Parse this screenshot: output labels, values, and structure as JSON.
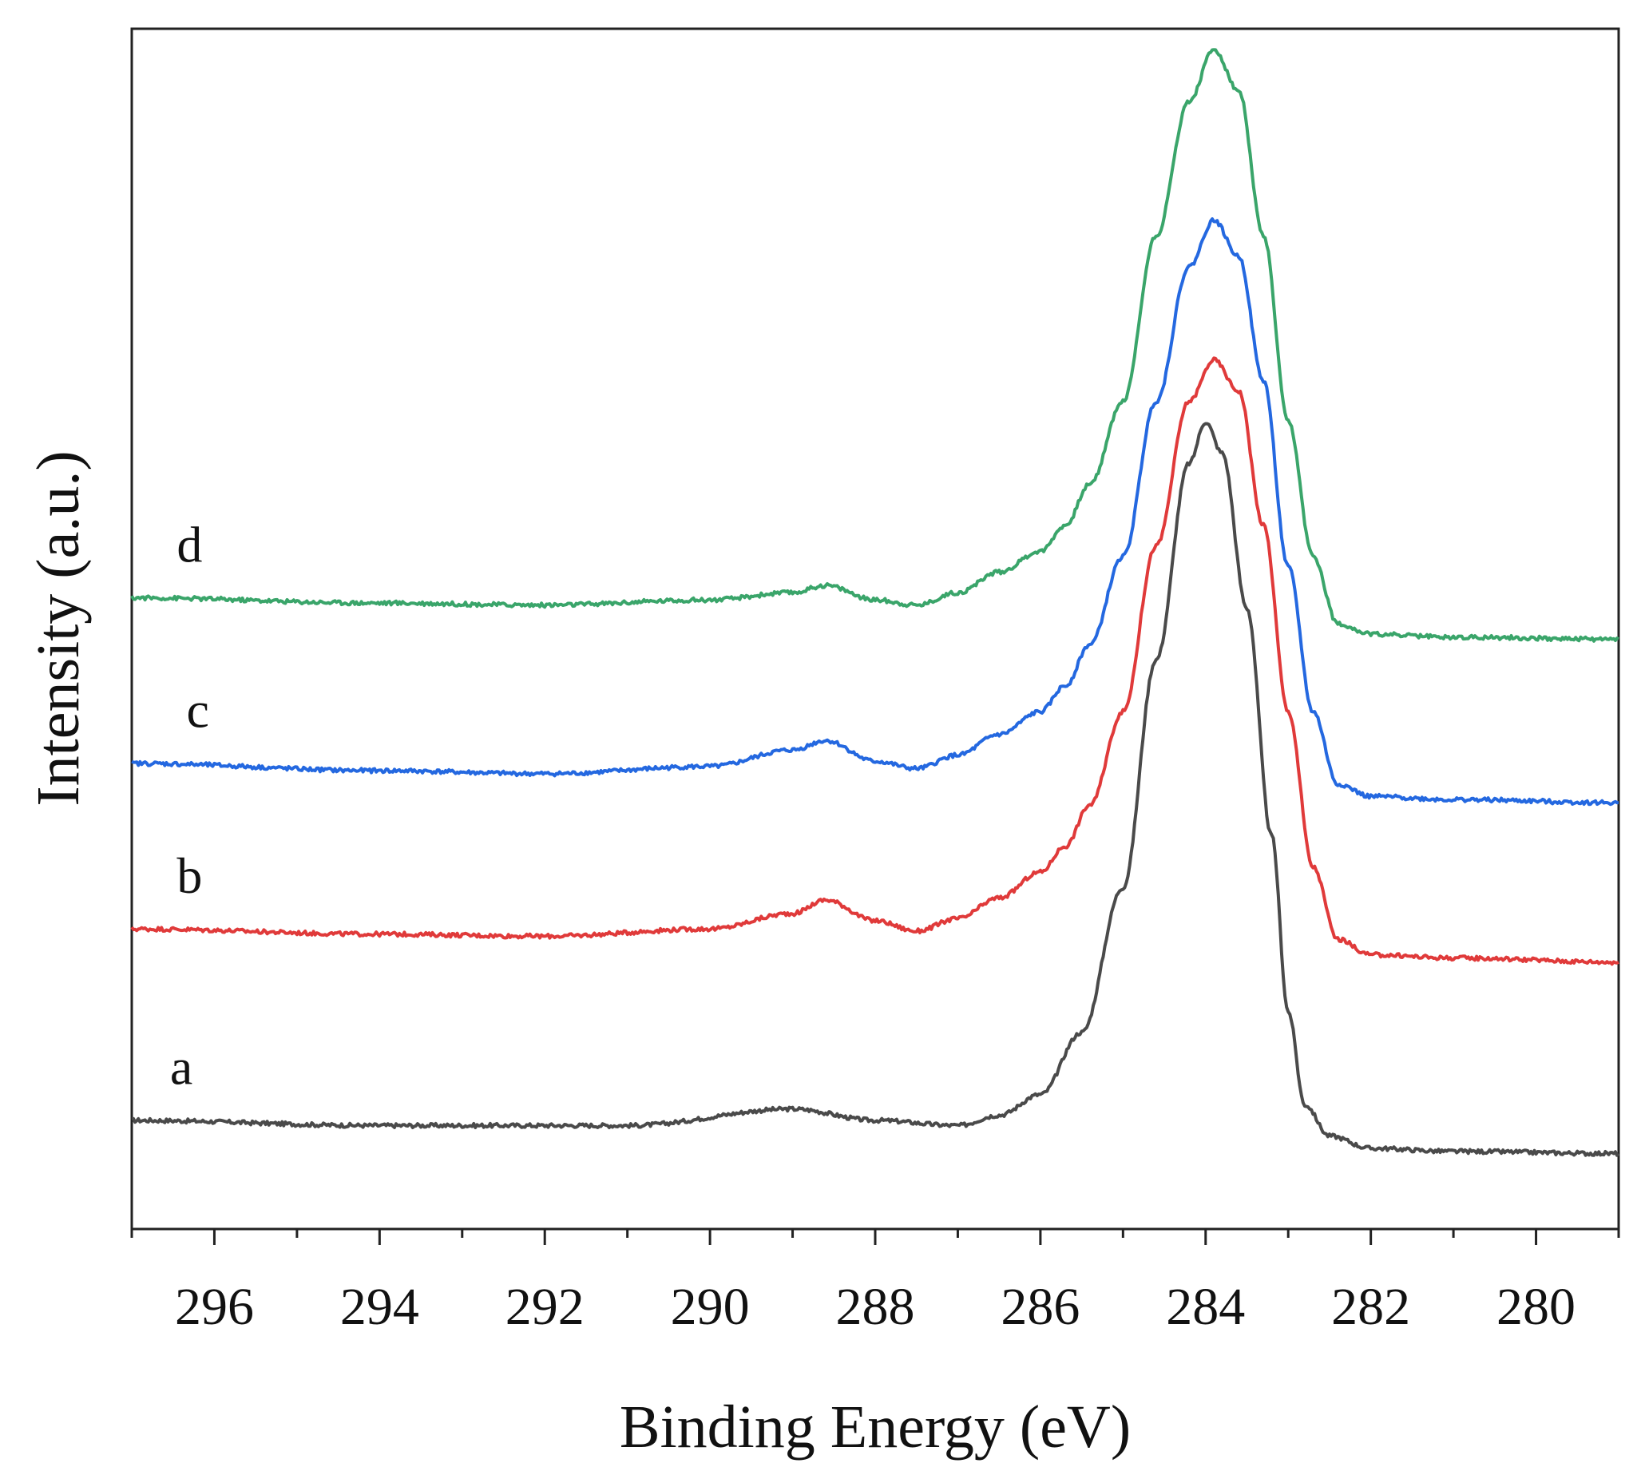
{
  "chart_data": {
    "type": "line",
    "title": "",
    "xlabel": "Binding Energy (eV)",
    "ylabel": "Intensity (a.u.)",
    "xlim": [
      297,
      279
    ],
    "x_reversed": true,
    "ylim": [
      0,
      1.16
    ],
    "x_ticks": [
      296,
      294,
      292,
      290,
      288,
      286,
      284,
      282,
      280
    ],
    "x_tick_labels": [
      "296",
      "294",
      "292",
      "290",
      "288",
      "286",
      "284",
      "282",
      "280"
    ],
    "grid": false,
    "legend": "none (curves labeled directly)",
    "series": [
      {
        "name": "a",
        "color": "#4a4a4a",
        "x": [
          297,
          294,
          291,
          289,
          288,
          287,
          286.5,
          286,
          285.5,
          285,
          284.6,
          284.2,
          284,
          283.8,
          283.5,
          283.2,
          283,
          282.8,
          282.5,
          282,
          281,
          279
        ],
        "y": [
          0.105,
          0.1,
          0.1,
          0.116,
          0.105,
          0.1,
          0.11,
          0.13,
          0.19,
          0.33,
          0.55,
          0.74,
          0.78,
          0.75,
          0.6,
          0.38,
          0.21,
          0.12,
          0.09,
          0.078,
          0.075,
          0.073
        ],
        "label_at": [
          296.4,
          0.14
        ]
      },
      {
        "name": "b",
        "color": "#e03a3a",
        "x": [
          297,
          294,
          292,
          290,
          289,
          288.6,
          288,
          287.5,
          287,
          286.5,
          286,
          285.7,
          285.4,
          285,
          284.6,
          284.2,
          283.9,
          283.6,
          283.3,
          283,
          282.7,
          282.4,
          282,
          281,
          279
        ],
        "y": [
          0.29,
          0.285,
          0.283,
          0.29,
          0.305,
          0.318,
          0.298,
          0.288,
          0.3,
          0.32,
          0.345,
          0.37,
          0.41,
          0.5,
          0.66,
          0.8,
          0.84,
          0.81,
          0.68,
          0.5,
          0.35,
          0.28,
          0.265,
          0.262,
          0.258
        ],
        "label_at": [
          296.3,
          0.325
        ]
      },
      {
        "name": "c",
        "color": "#2468e0",
        "x": [
          297,
          294,
          292,
          290,
          289,
          288.6,
          288,
          287.5,
          287,
          286.5,
          286,
          285.7,
          285.4,
          285,
          284.6,
          284.2,
          283.9,
          283.6,
          283.3,
          283,
          282.7,
          282.4,
          282,
          281,
          279
        ],
        "y": [
          0.45,
          0.443,
          0.44,
          0.447,
          0.463,
          0.472,
          0.452,
          0.445,
          0.458,
          0.478,
          0.5,
          0.525,
          0.565,
          0.65,
          0.8,
          0.93,
          0.975,
          0.94,
          0.82,
          0.64,
          0.5,
          0.43,
          0.418,
          0.415,
          0.412
        ],
        "label_at": [
          296.2,
          0.485
        ]
      },
      {
        "name": "d",
        "color": "#3aa56a",
        "x": [
          297,
          294,
          292,
          290,
          289,
          288.6,
          288,
          287.5,
          287,
          286.5,
          286,
          285.7,
          285.4,
          285,
          284.6,
          284.2,
          283.9,
          283.6,
          283.3,
          283,
          282.7,
          282.4,
          282,
          281,
          279
        ],
        "y": [
          0.61,
          0.605,
          0.603,
          0.608,
          0.615,
          0.622,
          0.608,
          0.603,
          0.615,
          0.635,
          0.655,
          0.68,
          0.72,
          0.8,
          0.96,
          1.09,
          1.14,
          1.1,
          0.96,
          0.78,
          0.65,
          0.585,
          0.575,
          0.572,
          0.57
        ],
        "label_at": [
          296.3,
          0.645
        ]
      }
    ]
  }
}
